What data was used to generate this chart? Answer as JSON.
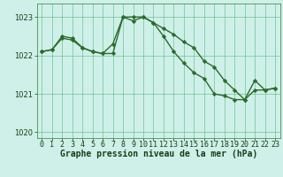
{
  "line1_x": [
    0,
    1,
    2,
    3,
    4,
    5,
    6,
    7,
    8,
    9,
    10,
    11,
    12,
    13,
    14,
    15,
    16,
    17,
    18,
    19,
    20,
    21,
    22,
    23
  ],
  "line1_y": [
    1022.1,
    1022.15,
    1022.5,
    1022.45,
    1022.2,
    1022.1,
    1022.05,
    1022.05,
    1023.0,
    1022.9,
    1023.0,
    1022.85,
    1022.7,
    1022.55,
    1022.35,
    1022.2,
    1021.85,
    1021.7,
    1021.35,
    1021.1,
    1020.85,
    1021.1,
    1021.1,
    1021.15
  ],
  "line2_x": [
    0,
    1,
    2,
    3,
    4,
    5,
    6,
    7,
    8,
    9,
    10,
    11,
    12,
    13,
    14,
    15,
    16,
    17,
    18,
    19,
    20,
    21,
    22,
    23
  ],
  "line2_y": [
    1022.1,
    1022.15,
    1022.45,
    1022.4,
    1022.2,
    1022.1,
    1022.05,
    1022.3,
    1023.0,
    1023.0,
    1023.0,
    1022.85,
    1022.5,
    1022.1,
    1021.8,
    1021.55,
    1021.4,
    1021.0,
    1020.95,
    1020.85,
    1020.85,
    1021.35,
    1021.1,
    1021.15
  ],
  "line_color": "#2d6a2d",
  "bg_color": "#cef0e8",
  "grid_color": "#5bb585",
  "xlabel": "Graphe pression niveau de la mer (hPa)",
  "ylim": [
    1019.85,
    1023.35
  ],
  "yticks": [
    1020,
    1021,
    1022,
    1023
  ],
  "xticks": [
    0,
    1,
    2,
    3,
    4,
    5,
    6,
    7,
    8,
    9,
    10,
    11,
    12,
    13,
    14,
    15,
    16,
    17,
    18,
    19,
    20,
    21,
    22,
    23
  ],
  "marker": "D",
  "marker_size": 2.2,
  "linewidth": 1.0,
  "xlabel_fontsize": 7.0,
  "tick_fontsize": 6.0,
  "xlabel_color": "#1a3d1a",
  "tick_color": "#1a3d1a",
  "spine_color": "#3a7a3a"
}
